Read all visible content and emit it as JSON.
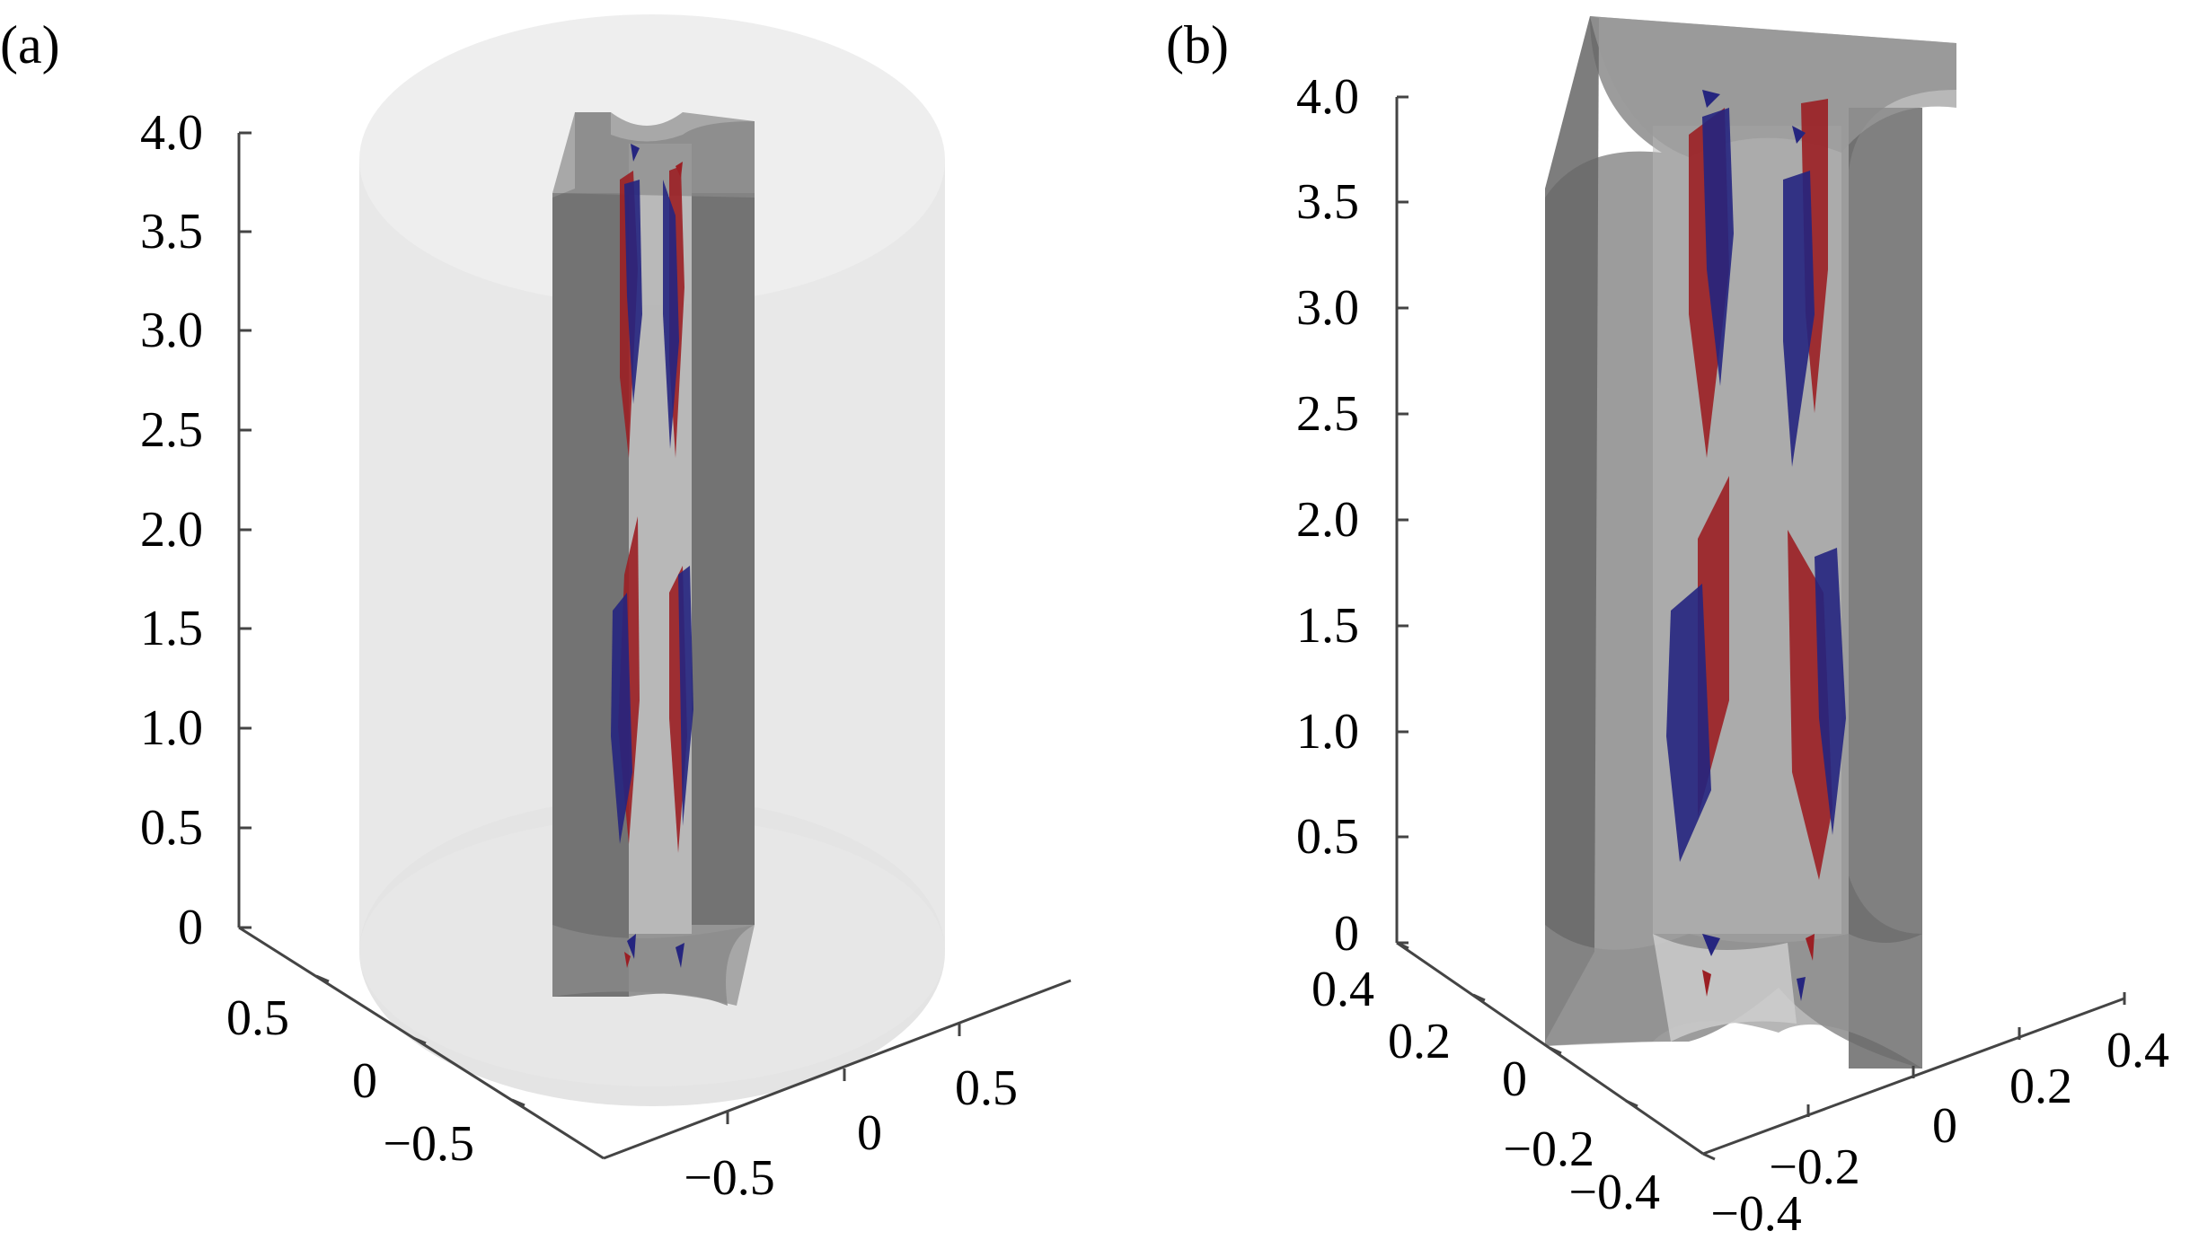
{
  "panels": [
    {
      "label": "(a)",
      "z_ticks": [
        "4.0",
        "3.5",
        "3.0",
        "2.5",
        "2.0",
        "1.5",
        "1.0",
        "0.5",
        "0"
      ],
      "y_ticks": [
        "0.5",
        "0",
        "−0.5"
      ],
      "x_ticks": [
        "−0.5",
        "0",
        "0.5"
      ]
    },
    {
      "label": "(b)",
      "z_ticks": [
        "4.0",
        "3.5",
        "3.0",
        "2.5",
        "2.0",
        "1.5",
        "1.0",
        "0.5",
        "0"
      ],
      "y_ticks": [
        "0.4",
        "0.2",
        "0",
        "−0.2",
        "−0.4"
      ],
      "x_ticks": [
        "−0.4",
        "−0.2",
        "0",
        "0.2",
        "0.4"
      ]
    }
  ],
  "colors": {
    "outer_cylinder": "#e6e6e6",
    "isosurface_gray": "#6e6e6e",
    "positive_vortex": "#9b1f24",
    "negative_vortex": "#25257f"
  }
}
